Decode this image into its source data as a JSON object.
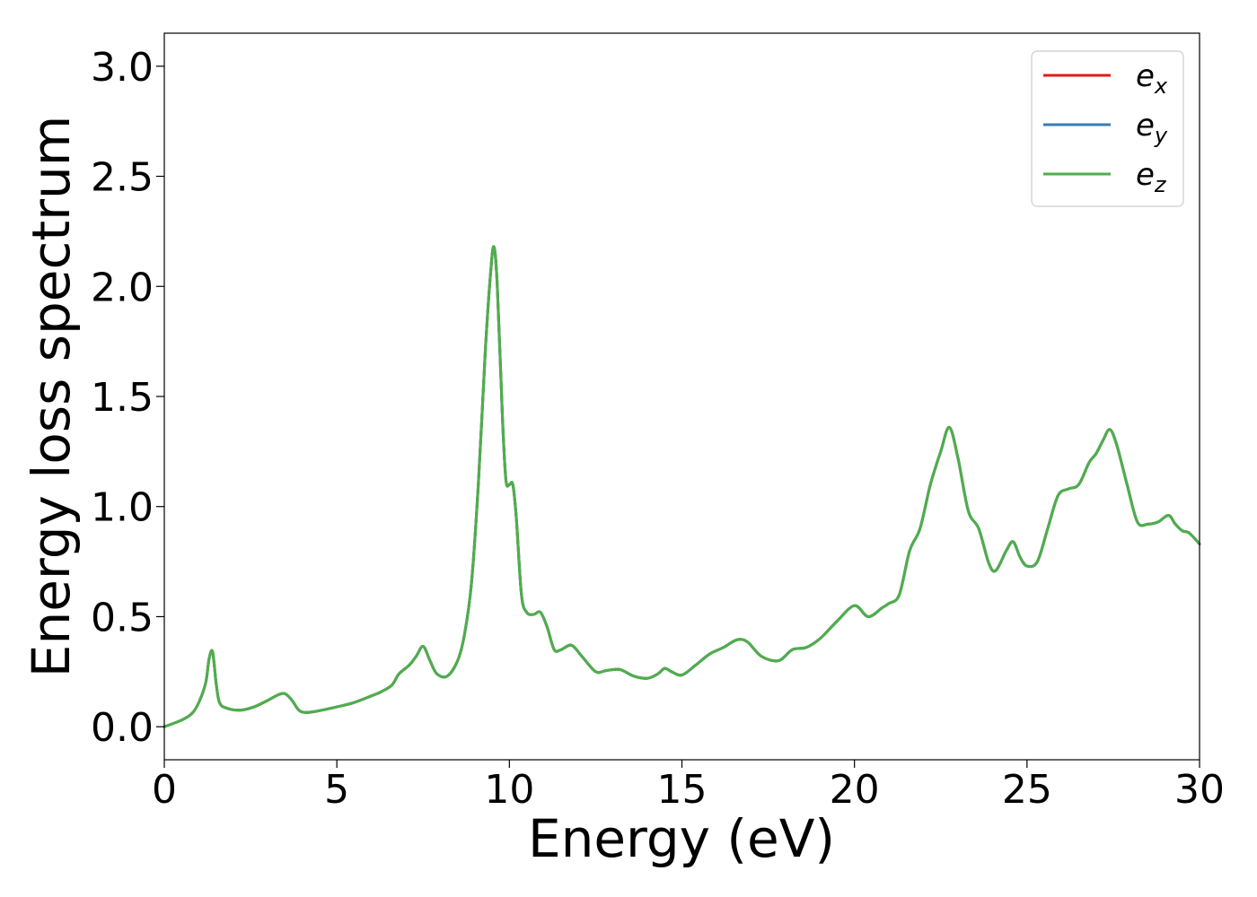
{
  "chart_data": {
    "type": "line",
    "xlabel": "Energy (eV)",
    "ylabel": "Energy loss spectrum",
    "xlim": [
      0,
      30
    ],
    "ylim": [
      -0.15,
      3.15
    ],
    "xticks": [
      "0",
      "5",
      "10",
      "15",
      "20",
      "25",
      "30"
    ],
    "yticks": [
      "0.0",
      "0.5",
      "1.0",
      "1.5",
      "2.0",
      "2.5",
      "3.0"
    ],
    "grid": false,
    "legend_position": "top-right",
    "series": [
      {
        "name": "e",
        "subscript": "x",
        "color": "#e41a1c",
        "x": [
          0,
          0.5,
          0.8,
          1.0,
          1.2,
          1.3,
          1.4,
          1.5,
          1.6,
          1.8,
          2.2,
          2.6,
          3.0,
          3.3,
          3.5,
          3.7,
          3.9,
          4.1,
          4.4,
          5.0,
          5.5,
          6.0,
          6.3,
          6.6,
          6.8,
          7.1,
          7.3,
          7.5,
          7.7,
          7.9,
          8.2,
          8.5,
          8.7,
          8.9,
          9.1,
          9.3,
          9.45,
          9.55,
          9.65,
          9.8,
          9.9,
          10.0,
          10.1,
          10.2,
          10.35,
          10.5,
          10.7,
          10.9,
          11.1,
          11.3,
          11.5,
          11.8,
          12.1,
          12.5,
          12.8,
          13.2,
          13.6,
          14.0,
          14.3,
          14.5,
          14.7,
          15.0,
          15.4,
          15.8,
          16.2,
          16.6,
          16.9,
          17.3,
          17.8,
          18.2,
          18.6,
          19.0,
          19.5,
          20.0,
          20.4,
          20.8,
          21.0,
          21.3,
          21.6,
          21.9,
          22.2,
          22.5,
          22.75,
          23.0,
          23.3,
          23.6,
          23.9,
          24.1,
          24.4,
          24.6,
          24.8,
          25.0,
          25.3,
          25.6,
          25.9,
          26.2,
          26.5,
          26.8,
          27.0,
          27.2,
          27.4,
          27.6,
          27.9,
          28.2,
          28.5,
          28.8,
          29.1,
          29.3,
          29.5,
          29.7,
          30.0
        ],
        "y": [
          0,
          0.03,
          0.06,
          0.11,
          0.2,
          0.31,
          0.34,
          0.2,
          0.11,
          0.085,
          0.075,
          0.09,
          0.12,
          0.145,
          0.15,
          0.12,
          0.075,
          0.065,
          0.07,
          0.09,
          0.11,
          0.14,
          0.16,
          0.19,
          0.24,
          0.28,
          0.32,
          0.365,
          0.3,
          0.24,
          0.23,
          0.3,
          0.42,
          0.65,
          1.1,
          1.7,
          2.05,
          2.18,
          2.0,
          1.4,
          1.12,
          1.1,
          1.1,
          0.95,
          0.6,
          0.52,
          0.51,
          0.52,
          0.45,
          0.35,
          0.35,
          0.37,
          0.32,
          0.25,
          0.255,
          0.26,
          0.23,
          0.22,
          0.24,
          0.265,
          0.25,
          0.235,
          0.28,
          0.33,
          0.36,
          0.395,
          0.385,
          0.32,
          0.3,
          0.35,
          0.36,
          0.4,
          0.48,
          0.55,
          0.5,
          0.54,
          0.56,
          0.6,
          0.8,
          0.9,
          1.1,
          1.25,
          1.36,
          1.22,
          0.98,
          0.9,
          0.74,
          0.71,
          0.8,
          0.84,
          0.77,
          0.73,
          0.75,
          0.9,
          1.05,
          1.08,
          1.1,
          1.2,
          1.24,
          1.3,
          1.35,
          1.28,
          1.1,
          0.93,
          0.92,
          0.93,
          0.96,
          0.92,
          0.89,
          0.88,
          0.83
        ]
      },
      {
        "name": "e",
        "subscript": "y",
        "color": "#377eb8",
        "x": [
          0,
          0.5,
          0.8,
          1.0,
          1.2,
          1.3,
          1.4,
          1.5,
          1.6,
          1.8,
          2.2,
          2.6,
          3.0,
          3.3,
          3.5,
          3.7,
          3.9,
          4.1,
          4.4,
          5.0,
          5.5,
          6.0,
          6.3,
          6.6,
          6.8,
          7.1,
          7.3,
          7.5,
          7.7,
          7.9,
          8.2,
          8.5,
          8.7,
          8.9,
          9.1,
          9.3,
          9.45,
          9.55,
          9.65,
          9.8,
          9.9,
          10.0,
          10.1,
          10.2,
          10.35,
          10.5,
          10.7,
          10.9,
          11.1,
          11.3,
          11.5,
          11.8,
          12.1,
          12.5,
          12.8,
          13.2,
          13.6,
          14.0,
          14.3,
          14.5,
          14.7,
          15.0,
          15.4,
          15.8,
          16.2,
          16.6,
          16.9,
          17.3,
          17.8,
          18.2,
          18.6,
          19.0,
          19.5,
          20.0,
          20.4,
          20.8,
          21.0,
          21.3,
          21.6,
          21.9,
          22.2,
          22.5,
          22.75,
          23.0,
          23.3,
          23.6,
          23.9,
          24.1,
          24.4,
          24.6,
          24.8,
          25.0,
          25.3,
          25.6,
          25.9,
          26.2,
          26.5,
          26.8,
          27.0,
          27.2,
          27.4,
          27.6,
          27.9,
          28.2,
          28.5,
          28.8,
          29.1,
          29.3,
          29.5,
          29.7,
          30.0
        ],
        "y": [
          0,
          0.03,
          0.06,
          0.11,
          0.2,
          0.31,
          0.34,
          0.2,
          0.11,
          0.085,
          0.075,
          0.09,
          0.12,
          0.145,
          0.15,
          0.12,
          0.075,
          0.065,
          0.07,
          0.09,
          0.11,
          0.14,
          0.16,
          0.19,
          0.24,
          0.28,
          0.32,
          0.365,
          0.3,
          0.24,
          0.23,
          0.3,
          0.42,
          0.65,
          1.1,
          1.7,
          2.05,
          2.18,
          2.0,
          1.4,
          1.12,
          1.1,
          1.1,
          0.95,
          0.6,
          0.52,
          0.51,
          0.52,
          0.45,
          0.35,
          0.35,
          0.37,
          0.32,
          0.25,
          0.255,
          0.26,
          0.23,
          0.22,
          0.24,
          0.265,
          0.25,
          0.235,
          0.28,
          0.33,
          0.36,
          0.395,
          0.385,
          0.32,
          0.3,
          0.35,
          0.36,
          0.4,
          0.48,
          0.55,
          0.5,
          0.54,
          0.56,
          0.6,
          0.8,
          0.9,
          1.1,
          1.25,
          1.36,
          1.22,
          0.98,
          0.9,
          0.74,
          0.71,
          0.8,
          0.84,
          0.77,
          0.73,
          0.75,
          0.9,
          1.05,
          1.08,
          1.1,
          1.2,
          1.24,
          1.3,
          1.35,
          1.28,
          1.1,
          0.93,
          0.92,
          0.93,
          0.96,
          0.92,
          0.89,
          0.88,
          0.83
        ]
      },
      {
        "name": "e",
        "subscript": "z",
        "color": "#4daf4a",
        "x": [
          0,
          0.5,
          0.8,
          1.0,
          1.2,
          1.3,
          1.4,
          1.5,
          1.6,
          1.8,
          2.2,
          2.6,
          3.0,
          3.3,
          3.5,
          3.7,
          3.9,
          4.1,
          4.4,
          5.0,
          5.5,
          6.0,
          6.3,
          6.6,
          6.8,
          7.1,
          7.3,
          7.5,
          7.7,
          7.9,
          8.2,
          8.5,
          8.7,
          8.9,
          9.1,
          9.3,
          9.45,
          9.55,
          9.65,
          9.8,
          9.9,
          10.0,
          10.1,
          10.2,
          10.35,
          10.5,
          10.7,
          10.9,
          11.1,
          11.3,
          11.5,
          11.8,
          12.1,
          12.5,
          12.8,
          13.2,
          13.6,
          14.0,
          14.3,
          14.5,
          14.7,
          15.0,
          15.4,
          15.8,
          16.2,
          16.6,
          16.9,
          17.3,
          17.8,
          18.2,
          18.6,
          19.0,
          19.5,
          20.0,
          20.4,
          20.8,
          21.0,
          21.3,
          21.6,
          21.9,
          22.2,
          22.5,
          22.75,
          23.0,
          23.3,
          23.6,
          23.9,
          24.1,
          24.4,
          24.6,
          24.8,
          25.0,
          25.3,
          25.6,
          25.9,
          26.2,
          26.5,
          26.8,
          27.0,
          27.2,
          27.4,
          27.6,
          27.9,
          28.2,
          28.5,
          28.8,
          29.1,
          29.3,
          29.5,
          29.7,
          30.0
        ],
        "y": [
          0,
          0.03,
          0.06,
          0.11,
          0.2,
          0.31,
          0.34,
          0.2,
          0.11,
          0.085,
          0.075,
          0.09,
          0.12,
          0.145,
          0.15,
          0.12,
          0.075,
          0.065,
          0.07,
          0.09,
          0.11,
          0.14,
          0.16,
          0.19,
          0.24,
          0.28,
          0.32,
          0.365,
          0.3,
          0.24,
          0.23,
          0.3,
          0.42,
          0.65,
          1.1,
          1.7,
          2.05,
          2.18,
          2.0,
          1.4,
          1.12,
          1.1,
          1.1,
          0.95,
          0.6,
          0.52,
          0.51,
          0.52,
          0.45,
          0.35,
          0.35,
          0.37,
          0.32,
          0.25,
          0.255,
          0.26,
          0.23,
          0.22,
          0.24,
          0.265,
          0.25,
          0.235,
          0.28,
          0.33,
          0.36,
          0.395,
          0.385,
          0.32,
          0.3,
          0.35,
          0.36,
          0.4,
          0.48,
          0.55,
          0.5,
          0.54,
          0.56,
          0.6,
          0.8,
          0.9,
          1.1,
          1.25,
          1.36,
          1.22,
          0.98,
          0.9,
          0.74,
          0.71,
          0.8,
          0.84,
          0.77,
          0.73,
          0.75,
          0.9,
          1.05,
          1.08,
          1.1,
          1.2,
          1.24,
          1.3,
          1.35,
          1.28,
          1.1,
          0.93,
          0.92,
          0.93,
          0.96,
          0.92,
          0.89,
          0.88,
          0.83
        ]
      }
    ]
  }
}
